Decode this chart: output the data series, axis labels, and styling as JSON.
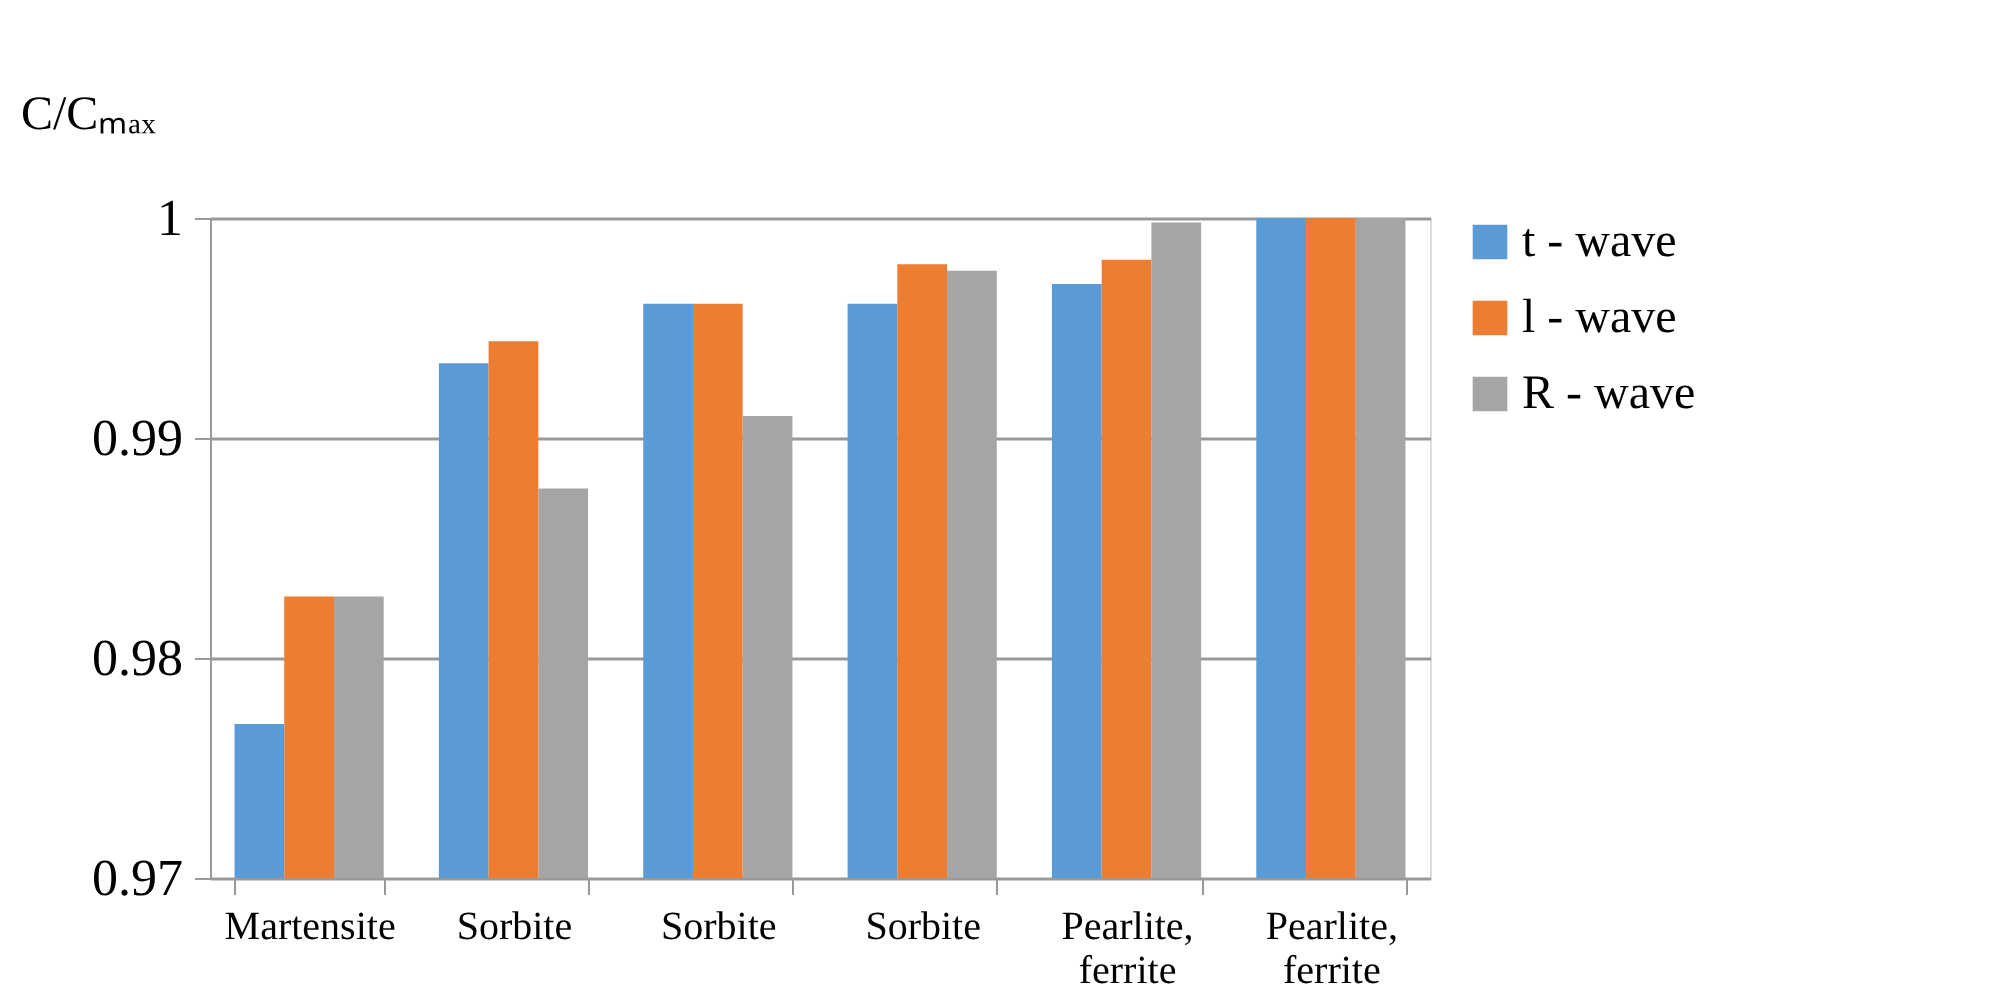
{
  "chart_data": {
    "type": "bar",
    "ylabel": "C/Cₘₐₓ",
    "categories": [
      "Martensite",
      "Sorbite",
      "Sorbite",
      "Sorbite",
      "Pearlite, ferrite",
      "Pearlite, ferrite"
    ],
    "series": [
      {
        "name": "t - wave",
        "color": "#5b9bd5",
        "values": [
          0.977,
          0.9934,
          0.9961,
          0.9961,
          0.997,
          1.0
        ]
      },
      {
        "name": "l - wave",
        "color": "#ed7d31",
        "values": [
          0.9828,
          0.9944,
          0.9961,
          0.9979,
          0.9981,
          1.0
        ]
      },
      {
        "name": "R - wave",
        "color": "#a5a5a5",
        "values": [
          0.9828,
          0.9877,
          0.991,
          0.9976,
          0.9998,
          1.0
        ]
      }
    ],
    "ylim": [
      0.97,
      1
    ],
    "yticks": [
      0.97,
      0.98,
      0.99,
      1
    ],
    "grid": "y",
    "legend": "right"
  }
}
